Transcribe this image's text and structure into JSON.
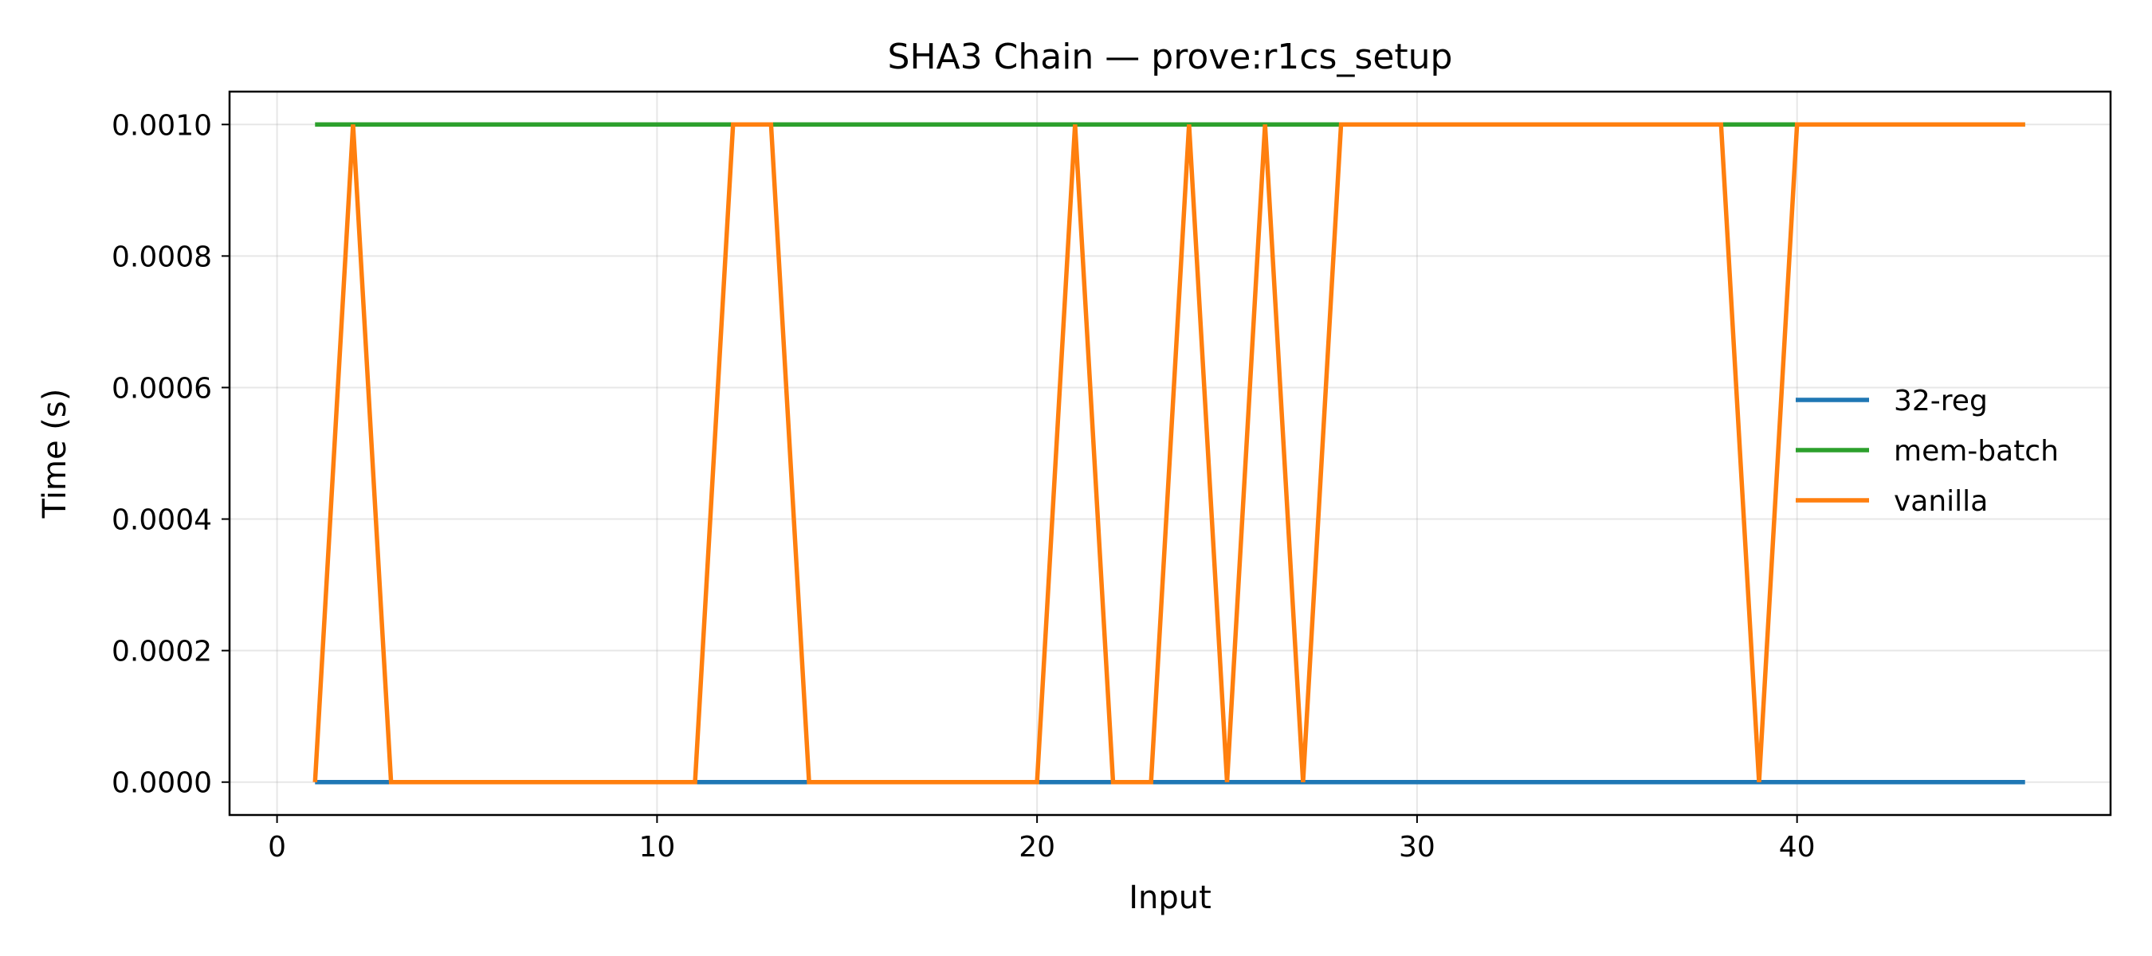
{
  "chart_data": {
    "type": "line",
    "title": "SHA3 Chain — prove:r1cs_setup",
    "xlabel": "Input",
    "ylabel": "Time (s)",
    "xlim": [
      -1.25,
      48.25
    ],
    "ylim": [
      -5e-05,
      0.00105
    ],
    "x_ticks": [
      0,
      10,
      20,
      30,
      40
    ],
    "x_tick_labels": [
      "0",
      "10",
      "20",
      "30",
      "40"
    ],
    "y_ticks": [
      0,
      0.0002,
      0.0004,
      0.0006,
      0.0008,
      0.001
    ],
    "y_tick_labels": [
      "0.0000",
      "0.0002",
      "0.0004",
      "0.0006",
      "0.0008",
      "0.0010"
    ],
    "grid": true,
    "legend_position": "center-right",
    "x": [
      1,
      2,
      3,
      4,
      5,
      6,
      7,
      8,
      9,
      10,
      11,
      12,
      13,
      14,
      15,
      16,
      17,
      18,
      19,
      20,
      21,
      22,
      23,
      24,
      25,
      26,
      27,
      28,
      29,
      30,
      31,
      32,
      33,
      34,
      35,
      36,
      37,
      38,
      39,
      40,
      41,
      42,
      43,
      44,
      45,
      46
    ],
    "series": [
      {
        "name": "32-reg",
        "color": "#1f77b4",
        "values": [
          0,
          0,
          0,
          0,
          0,
          0,
          0,
          0,
          0,
          0,
          0,
          0,
          0,
          0,
          0,
          0,
          0,
          0,
          0,
          0,
          0,
          0,
          0,
          0,
          0,
          0,
          0,
          0,
          0,
          0,
          0,
          0,
          0,
          0,
          0,
          0,
          0,
          0,
          0,
          0,
          0,
          0,
          0,
          0,
          0,
          0
        ]
      },
      {
        "name": "mem-batch",
        "color": "#2ca02c",
        "values": [
          0.001,
          0.001,
          0.001,
          0.001,
          0.001,
          0.001,
          0.001,
          0.001,
          0.001,
          0.001,
          0.001,
          0.001,
          0.001,
          0.001,
          0.001,
          0.001,
          0.001,
          0.001,
          0.001,
          0.001,
          0.001,
          0.001,
          0.001,
          0.001,
          0.001,
          0.001,
          0.001,
          0.001,
          0.001,
          0.001,
          0.001,
          0.001,
          0.001,
          0.001,
          0.001,
          0.001,
          0.001,
          0.001,
          0.001,
          0.001,
          0.001,
          0.001,
          0.001,
          0.001,
          0.001,
          0.001
        ]
      },
      {
        "name": "vanilla",
        "color": "#ff7f0e",
        "values": [
          0,
          0.001,
          0,
          0,
          0,
          0,
          0,
          0,
          0,
          0,
          0,
          0.001,
          0.001,
          0,
          0,
          0,
          0,
          0,
          0,
          0,
          0.001,
          0,
          0,
          0.001,
          0,
          0.001,
          0,
          0.001,
          0.001,
          0.001,
          0.001,
          0.001,
          0.001,
          0.001,
          0.001,
          0.001,
          0.001,
          0.001,
          0,
          0.001,
          0.001,
          0.001,
          0.001,
          0.001,
          0.001,
          0.001
        ]
      }
    ]
  }
}
